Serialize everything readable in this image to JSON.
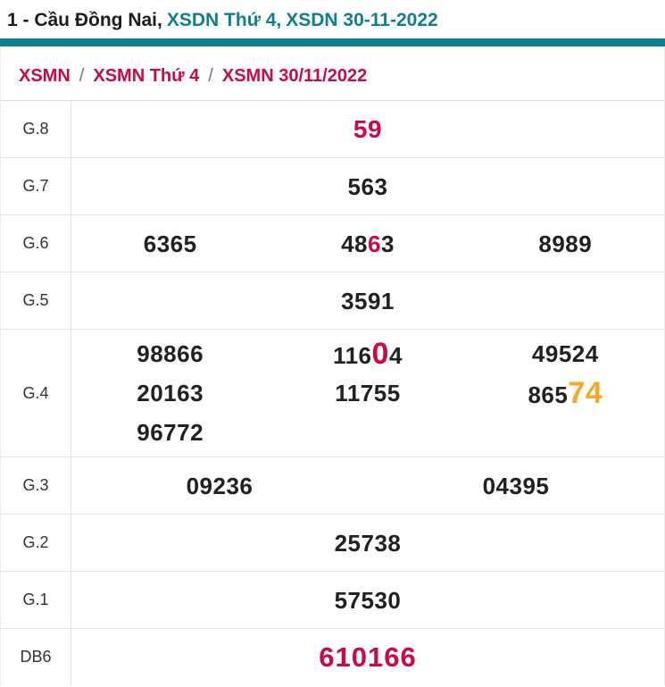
{
  "header": {
    "title_black": "1 - Cầu Đồng Nai,",
    "title_teal_1": "XSDN Thứ 4,",
    "title_teal_2": "XSDN 30-11-2022",
    "accent_color": "#0e7f8c"
  },
  "breadcrumb": {
    "separator": "/",
    "items": [
      "XSMN",
      "XSMN Thứ 4",
      "XSMN 30/11/2022"
    ]
  },
  "colors": {
    "highlight_red": "#c9094a",
    "highlight_orange": "#f9a825",
    "teal": "#0e7f8c",
    "text": "#212121"
  },
  "table": {
    "rows": [
      {
        "label": "G.8",
        "cls": "hl",
        "lines": [
          [
            [
              [
                "59",
                "r"
              ]
            ]
          ]
        ]
      },
      {
        "label": "G.7",
        "lines": [
          [
            [
              [
                "563",
                "n"
              ]
            ]
          ]
        ]
      },
      {
        "label": "G.6",
        "lines": [
          [
            [
              [
                "6365",
                "n"
              ]
            ],
            [
              [
                "48",
                "n"
              ],
              [
                "6",
                "r"
              ],
              [
                "3",
                "n"
              ]
            ],
            [
              [
                "8989",
                "n"
              ]
            ]
          ]
        ]
      },
      {
        "label": "G.5",
        "lines": [
          [
            [
              [
                "3591",
                "n"
              ]
            ]
          ]
        ]
      },
      {
        "label": "G.4",
        "lines": [
          [
            [
              [
                "98866",
                "n"
              ]
            ],
            [
              [
                "116",
                "n"
              ],
              [
                "0",
                "R"
              ],
              [
                "4",
                "n"
              ]
            ],
            [
              [
                "49524",
                "n"
              ]
            ]
          ],
          [
            [
              [
                "20163",
                "n"
              ]
            ],
            [
              [
                "11755",
                "n"
              ]
            ],
            [
              [
                "865",
                "n"
              ],
              [
                "74",
                "O"
              ]
            ]
          ],
          [
            [
              [
                "96772",
                "n"
              ]
            ],
            [],
            []
          ]
        ]
      },
      {
        "label": "G.3",
        "lines": [
          [
            [
              [
                "09236",
                "n"
              ]
            ],
            [
              [
                "04395",
                "n"
              ]
            ]
          ]
        ]
      },
      {
        "label": "G.2",
        "lines": [
          [
            [
              [
                "25738",
                "n"
              ]
            ]
          ]
        ]
      },
      {
        "label": "G.1",
        "lines": [
          [
            [
              [
                "57530",
                "n"
              ]
            ]
          ]
        ]
      },
      {
        "label": "DB6",
        "cls": "db",
        "lines": [
          [
            [
              [
                "610166",
                "r"
              ]
            ]
          ]
        ]
      }
    ]
  }
}
